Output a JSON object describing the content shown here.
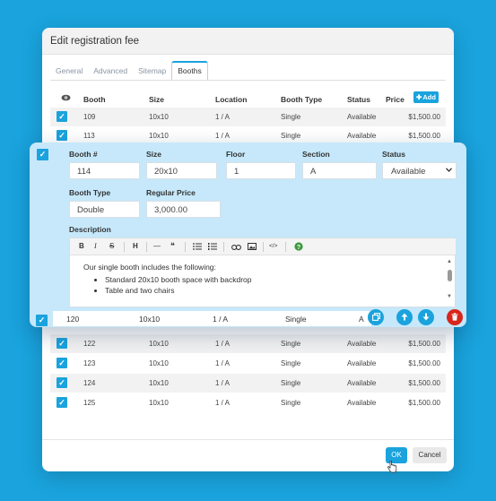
{
  "dialog": {
    "title": "Edit registration fee"
  },
  "tabs": [
    {
      "label": "General"
    },
    {
      "label": "Advanced"
    },
    {
      "label": "Sitemap"
    },
    {
      "label": "Booths",
      "active": true
    }
  ],
  "table": {
    "headers": {
      "eye": "eye-icon",
      "booth": "Booth",
      "size": "Size",
      "location": "Location",
      "type": "Booth Type",
      "status": "Status",
      "price": "Price",
      "add": "Add"
    },
    "rows": [
      {
        "booth": "109",
        "size": "10x10",
        "location": "1 / A",
        "type": "Single",
        "status": "Available",
        "price": "$1,500.00"
      },
      {
        "booth": "113",
        "size": "10x10",
        "location": "1 / A",
        "type": "Single",
        "status": "Available",
        "price": "$1,500.00"
      },
      {
        "booth": "122",
        "size": "10x10",
        "location": "1 / A",
        "type": "Single",
        "status": "Available",
        "price": "$1,500.00"
      },
      {
        "booth": "123",
        "size": "10x10",
        "location": "1 / A",
        "type": "Single",
        "status": "Available",
        "price": "$1,500.00"
      },
      {
        "booth": "124",
        "size": "10x10",
        "location": "1 / A",
        "type": "Single",
        "status": "Available",
        "price": "$1,500.00"
      },
      {
        "booth": "125",
        "size": "10x10",
        "location": "1 / A",
        "type": "Single",
        "status": "Available",
        "price": "$1,500.00"
      }
    ]
  },
  "edit": {
    "labels": {
      "booth": "Booth #",
      "size": "Size",
      "floor": "Floor",
      "section": "Section",
      "status": "Status",
      "type": "Booth Type",
      "price": "Regular Price",
      "description": "Description"
    },
    "values": {
      "booth": "114",
      "size": "20x10",
      "floor": "1",
      "section": "A",
      "status": "Available",
      "type": "Double",
      "price": "3,000.00"
    },
    "description": {
      "intro": "Our single booth includes the following:",
      "items": [
        "Standard 20x10 booth space with backdrop",
        "Table and two chairs"
      ]
    },
    "toolbar": {
      "bold": "B",
      "italic": "I",
      "strike": "S",
      "heading": "H",
      "hr": "—",
      "quote": "❝",
      "code": "</>"
    },
    "under_row": {
      "booth": "120",
      "size": "10x10",
      "location": "1 / A",
      "type": "Single",
      "status_partial": "A"
    }
  },
  "footer": {
    "ok": "OK",
    "cancel": "Cancel"
  },
  "colors": {
    "accent": "#1aa3dd",
    "panel": "#c6e8fa",
    "danger": "#d9261c",
    "background": "#1aa3dd"
  }
}
